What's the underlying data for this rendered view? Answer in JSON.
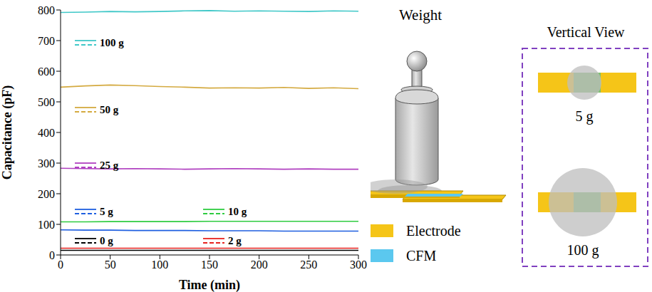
{
  "chart_data": {
    "type": "line",
    "x_label": "Time (min)",
    "y_label": "Capacitance (pF)",
    "x": [
      0,
      25,
      50,
      75,
      100,
      125,
      150,
      175,
      200,
      225,
      250,
      275,
      300
    ],
    "xlim": [
      0,
      300
    ],
    "xticks": [
      0,
      50,
      100,
      150,
      200,
      250,
      300
    ],
    "ylim": [
      0,
      800
    ],
    "yticks": [
      0,
      100,
      200,
      300,
      400,
      500,
      600,
      700,
      800
    ],
    "grid": false,
    "series": [
      {
        "name": "0 g",
        "color": "#000000",
        "values": [
          15,
          15,
          15,
          15,
          15,
          15,
          15,
          15,
          15,
          15,
          15,
          15,
          15
        ]
      },
      {
        "name": "2 g",
        "color": "#e8231f",
        "values": [
          22,
          22,
          22,
          22,
          22,
          22,
          22,
          22,
          22,
          22,
          22,
          22,
          22
        ]
      },
      {
        "name": "5 g",
        "color": "#1f5fe0",
        "values": [
          82,
          81,
          81,
          80,
          80,
          80,
          79,
          79,
          79,
          78,
          78,
          78,
          78
        ]
      },
      {
        "name": "10 g",
        "color": "#2ecc40",
        "values": [
          108,
          108,
          109,
          109,
          109,
          109,
          110,
          110,
          110,
          110,
          110,
          110,
          110
        ]
      },
      {
        "name": "25 g",
        "color": "#b040c0",
        "values": [
          283,
          282,
          281,
          282,
          281,
          280,
          281,
          282,
          281,
          280,
          281,
          280,
          280
        ]
      },
      {
        "name": "50 g",
        "color": "#d4aa40",
        "values": [
          548,
          552,
          555,
          553,
          550,
          548,
          545,
          546,
          545,
          547,
          544,
          546,
          543
        ]
      },
      {
        "name": "100 g",
        "color": "#40c8c8",
        "values": [
          792,
          793,
          795,
          794,
          795,
          797,
          798,
          796,
          797,
          796,
          795,
          797,
          796
        ]
      }
    ]
  },
  "diagram": {
    "title": "Weight",
    "legend": [
      {
        "label": "Electrode",
        "color": "#f5c518"
      },
      {
        "label": "CFM",
        "color": "#5bc8ef"
      }
    ],
    "vertical_view": {
      "title": "Vertical View",
      "items": [
        "5 g",
        "100 g"
      ]
    }
  }
}
